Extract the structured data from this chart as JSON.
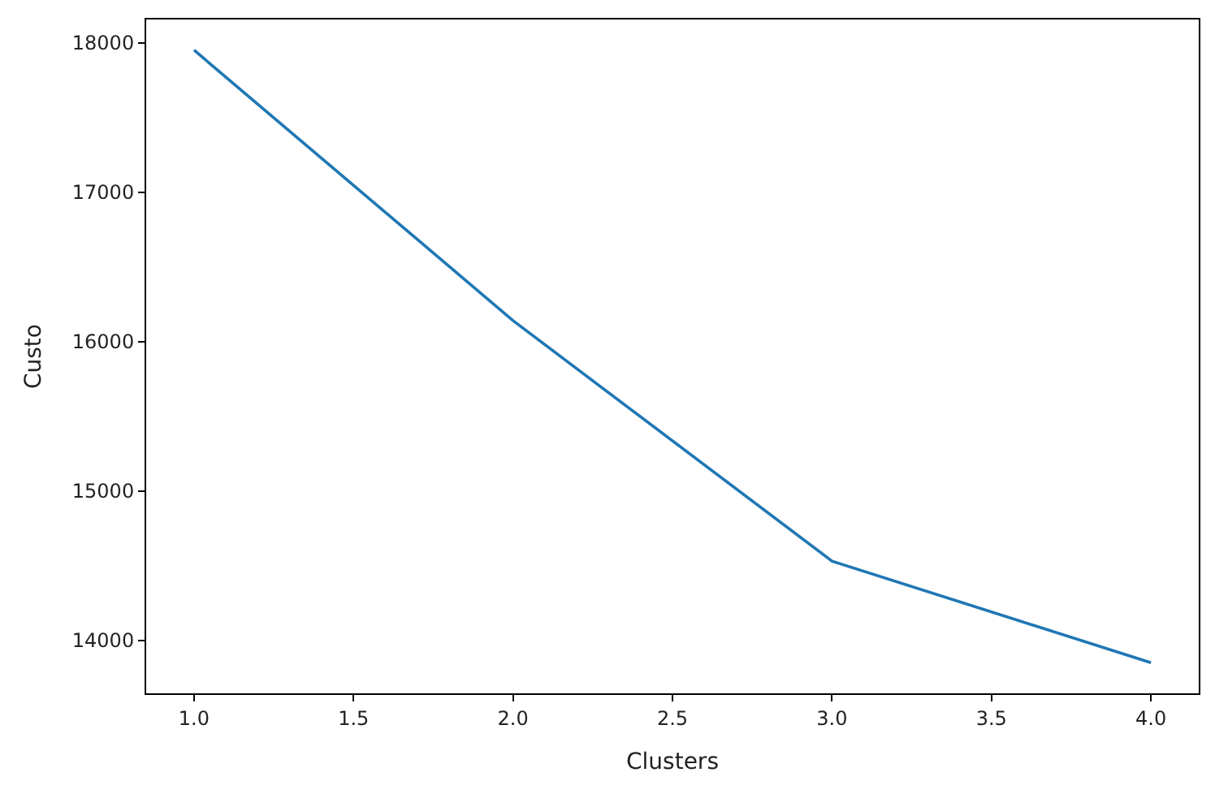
{
  "chart_data": {
    "type": "line",
    "xlabel": "Clusters",
    "ylabel": "Custo",
    "x": [
      1,
      2,
      3,
      4
    ],
    "series": [
      {
        "color": "#1f77b4",
        "values": [
          17950,
          16140,
          14530,
          13850
        ]
      }
    ],
    "xlim": [
      0.85,
      4.15
    ],
    "xticks": [
      {
        "value": 1,
        "label": "1.0"
      },
      {
        "value": 1.5,
        "label": "1.5"
      },
      {
        "value": 2,
        "label": "2.0"
      },
      {
        "value": 2.5,
        "label": "2.5"
      },
      {
        "value": 3,
        "label": "3.0"
      },
      {
        "value": 3.5,
        "label": "3.5"
      },
      {
        "value": 4,
        "label": "4.0"
      }
    ],
    "ylim": [
      13645,
      18155
    ],
    "yticks": [
      14000,
      15000,
      16000,
      17000,
      18000
    ],
    "marker": "none",
    "line_style": "solid"
  }
}
